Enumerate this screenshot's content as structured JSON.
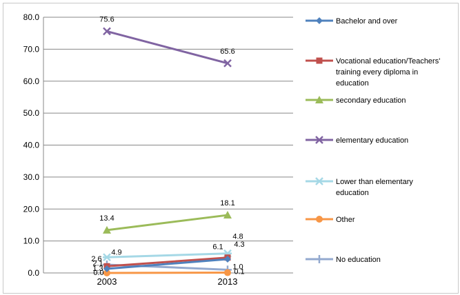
{
  "chart_data": {
    "type": "line",
    "title": "",
    "xlabel": "",
    "ylabel": "",
    "x": [
      "2003",
      "2013"
    ],
    "ylim": [
      0,
      80
    ],
    "yticks": [
      "0.0",
      "10.0",
      "20.0",
      "30.0",
      "40.0",
      "50.0",
      "60.0",
      "70.0",
      "80.0"
    ],
    "grid": true,
    "legend_position": "right",
    "series": [
      {
        "name": "Bachelor and over",
        "values": [
          1.3,
          4.3
        ],
        "labels": [
          "1.3",
          "4.3"
        ],
        "color": "#4F81BD",
        "marker": "diamond"
      },
      {
        "name": "Vocational education/Teachers' training every diploma in education",
        "legend_lines": [
          "Vocational education/Teachers'",
          "training every diploma in",
          "education"
        ],
        "values": [
          2.1,
          4.8
        ],
        "labels": [
          "2.1",
          "4.8"
        ],
        "color": "#C0504D",
        "marker": "square"
      },
      {
        "name": "secondary education",
        "values": [
          13.4,
          18.1
        ],
        "labels": [
          "13.4",
          "18.1"
        ],
        "color": "#9BBB59",
        "marker": "triangle"
      },
      {
        "name": "elementary education",
        "values": [
          75.6,
          65.6
        ],
        "labels": [
          "75.6",
          "65.6"
        ],
        "color": "#8064A2",
        "marker": "x"
      },
      {
        "name": "Lower than elementary education",
        "legend_lines": [
          "Lower than elementary",
          "education"
        ],
        "values": [
          4.9,
          6.1
        ],
        "labels": [
          "4.9",
          "6.1"
        ],
        "color": "#A5D8E6",
        "marker": "star"
      },
      {
        "name": "Other",
        "values": [
          0.0,
          0.1
        ],
        "labels": [
          "0.0",
          "0.1"
        ],
        "color": "#F79646",
        "marker": "circle"
      },
      {
        "name": "No education",
        "values": [
          2.6,
          1.0
        ],
        "labels": [
          "2.6",
          "1.0"
        ],
        "color": "#93A9CF",
        "marker": "plus"
      }
    ]
  }
}
